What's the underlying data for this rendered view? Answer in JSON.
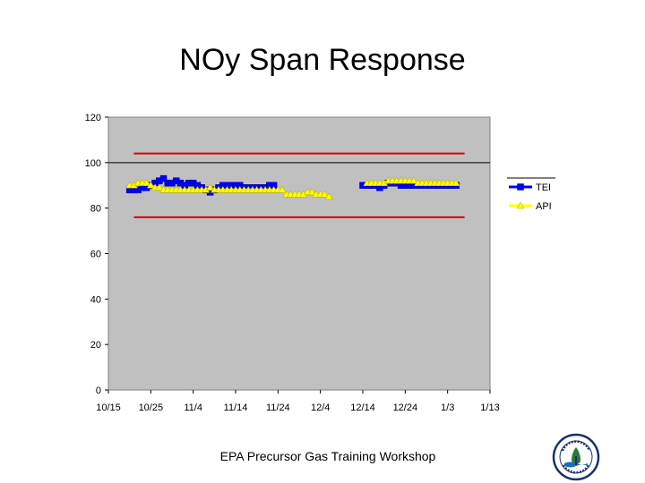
{
  "title": "NOy Span Response",
  "footer": "EPA Precursor Gas Training Workshop",
  "logo": {
    "icon": "epa-seal-icon"
  },
  "chart_data": {
    "type": "line",
    "title": "",
    "xlabel": "",
    "ylabel": "",
    "plot_background": "#c0c0c0",
    "ylim": [
      0,
      120
    ],
    "yticks": [
      0,
      20,
      40,
      60,
      80,
      100,
      120
    ],
    "xlim": [
      0,
      90
    ],
    "xticks": [
      {
        "pos": 0,
        "label": "10/15"
      },
      {
        "pos": 10,
        "label": "10/25"
      },
      {
        "pos": 20,
        "label": "11/4"
      },
      {
        "pos": 30,
        "label": "11/14"
      },
      {
        "pos": 40,
        "label": "11/24"
      },
      {
        "pos": 50,
        "label": "12/4"
      },
      {
        "pos": 60,
        "label": "12/14"
      },
      {
        "pos": 70,
        "label": "12/24"
      },
      {
        "pos": 80,
        "label": "1/3"
      },
      {
        "pos": 90,
        "label": "1/13"
      }
    ],
    "legend_position": "right",
    "reference_lines": [
      {
        "y": 100,
        "color": "#000000",
        "x": [
          0,
          90
        ]
      },
      {
        "y": 104,
        "color": "#e00000",
        "x": [
          6,
          84
        ]
      },
      {
        "y": 76,
        "color": "#e00000",
        "x": [
          6,
          84
        ]
      }
    ],
    "series": [
      {
        "name": "TEI",
        "color": "#0000ff",
        "marker": "square",
        "segments": [
          [
            [
              5,
              88
            ],
            [
              6,
              88
            ],
            [
              7,
              88
            ],
            [
              8,
              89
            ],
            [
              9,
              89
            ],
            [
              10,
              90
            ],
            [
              11,
              91
            ],
            [
              12,
              92
            ],
            [
              13,
              93
            ],
            [
              14,
              91
            ],
            [
              15,
              91
            ],
            [
              16,
              92
            ],
            [
              17,
              91
            ],
            [
              18,
              90
            ],
            [
              19,
              91
            ],
            [
              20,
              91
            ],
            [
              21,
              90
            ],
            [
              22,
              89
            ],
            [
              23,
              88
            ],
            [
              24,
              87
            ],
            [
              25,
              88
            ],
            [
              26,
              89
            ],
            [
              27,
              90
            ],
            [
              28,
              90
            ],
            [
              29,
              90
            ],
            [
              30,
              90
            ],
            [
              31,
              90
            ],
            [
              32,
              89
            ],
            [
              33,
              89
            ],
            [
              34,
              89
            ],
            [
              35,
              89
            ],
            [
              36,
              89
            ],
            [
              37,
              89
            ],
            [
              38,
              90
            ],
            [
              39,
              90
            ]
          ],
          [
            [
              60,
              90
            ],
            [
              61,
              90
            ],
            [
              62,
              90
            ],
            [
              63,
              90
            ],
            [
              64,
              89
            ],
            [
              65,
              90
            ],
            [
              66,
              91
            ],
            [
              67,
              91
            ],
            [
              68,
              91
            ],
            [
              69,
              90
            ],
            [
              70,
              90
            ],
            [
              71,
              90
            ],
            [
              72,
              90
            ],
            [
              73,
              90
            ],
            [
              74,
              90
            ],
            [
              75,
              90
            ],
            [
              76,
              90
            ],
            [
              77,
              90
            ],
            [
              78,
              90
            ],
            [
              79,
              90
            ],
            [
              80,
              90
            ],
            [
              81,
              90
            ],
            [
              82,
              90
            ]
          ]
        ]
      },
      {
        "name": "API",
        "color": "#ffff00",
        "marker": "triangle",
        "segments": [
          [
            [
              5,
              90
            ],
            [
              6,
              90
            ],
            [
              7,
              91
            ],
            [
              8,
              91
            ],
            [
              9,
              91
            ],
            [
              10,
              90
            ],
            [
              11,
              89
            ],
            [
              12,
              89
            ],
            [
              13,
              88
            ],
            [
              14,
              88
            ],
            [
              15,
              88
            ],
            [
              16,
              88
            ],
            [
              17,
              88
            ],
            [
              18,
              88
            ],
            [
              19,
              88
            ],
            [
              20,
              88
            ],
            [
              21,
              88
            ],
            [
              22,
              88
            ],
            [
              23,
              88
            ],
            [
              24,
              89
            ],
            [
              25,
              88
            ],
            [
              26,
              88
            ],
            [
              27,
              88
            ],
            [
              28,
              88
            ],
            [
              29,
              88
            ],
            [
              30,
              88
            ],
            [
              31,
              88
            ],
            [
              32,
              88
            ],
            [
              33,
              88
            ],
            [
              34,
              88
            ],
            [
              35,
              88
            ],
            [
              36,
              88
            ],
            [
              37,
              88
            ],
            [
              38,
              88
            ],
            [
              39,
              88
            ],
            [
              40,
              88
            ],
            [
              41,
              88
            ],
            [
              42,
              86
            ],
            [
              43,
              86
            ],
            [
              44,
              86
            ],
            [
              45,
              86
            ],
            [
              46,
              86
            ],
            [
              47,
              87
            ],
            [
              48,
              87
            ],
            [
              49,
              86
            ],
            [
              50,
              86
            ],
            [
              51,
              86
            ],
            [
              52,
              85
            ]
          ],
          [
            [
              61,
              91
            ],
            [
              62,
              91
            ],
            [
              63,
              91
            ],
            [
              64,
              91
            ],
            [
              65,
              91
            ],
            [
              66,
              92
            ],
            [
              67,
              92
            ],
            [
              68,
              92
            ],
            [
              69,
              92
            ],
            [
              70,
              92
            ],
            [
              71,
              92
            ],
            [
              72,
              92
            ],
            [
              73,
              91
            ],
            [
              74,
              91
            ],
            [
              75,
              91
            ],
            [
              76,
              91
            ],
            [
              77,
              91
            ],
            [
              78,
              91
            ],
            [
              79,
              91
            ],
            [
              80,
              91
            ],
            [
              81,
              91
            ],
            [
              82,
              91
            ]
          ]
        ]
      }
    ]
  }
}
